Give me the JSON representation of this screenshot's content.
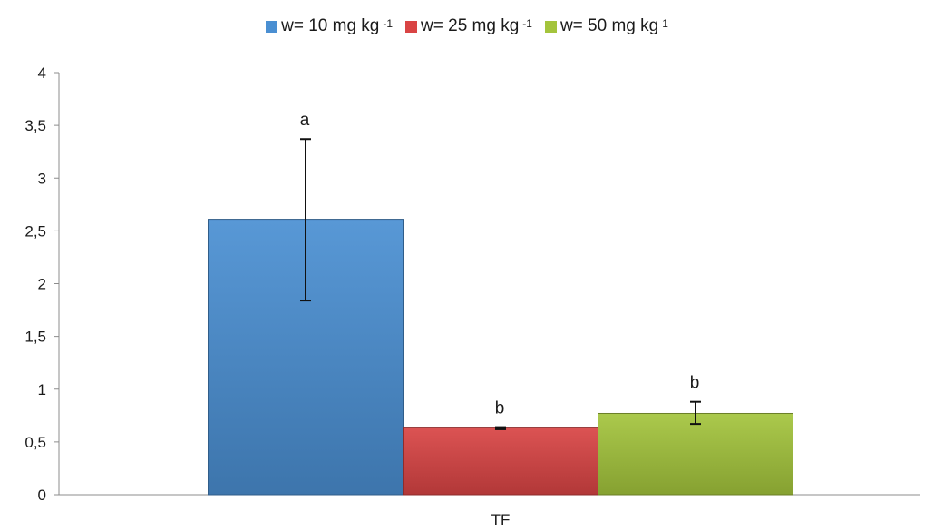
{
  "chart_data": {
    "type": "bar",
    "categories": [
      "TF"
    ],
    "series": [
      {
        "name": "w= 10 mg kg",
        "unit_exponent": "-1",
        "values": [
          2.61
        ],
        "error_low": [
          1.84
        ],
        "error_high": [
          3.37
        ],
        "significance": "a",
        "color": "#4a8fd2"
      },
      {
        "name": "w= 25 mg kg",
        "unit_exponent": "-1",
        "values": [
          0.64
        ],
        "error_low": [
          0.62
        ],
        "error_high": [
          0.64
        ],
        "significance": "b",
        "color": "#d94444"
      },
      {
        "name": "w= 50 mg kg",
        "unit_exponent": "1",
        "values": [
          0.77
        ],
        "error_low": [
          0.67
        ],
        "error_high": [
          0.88
        ],
        "significance": "b",
        "color": "#a4c43c"
      }
    ],
    "ylim": [
      0,
      4
    ],
    "yticks": [
      "0",
      "0,5",
      "1",
      "1,5",
      "2",
      "2,5",
      "3",
      "3,5",
      "4"
    ],
    "ytick_values": [
      0,
      0.5,
      1,
      1.5,
      2,
      2.5,
      3,
      3.5,
      4
    ],
    "grid": false,
    "legend_position": "top"
  }
}
